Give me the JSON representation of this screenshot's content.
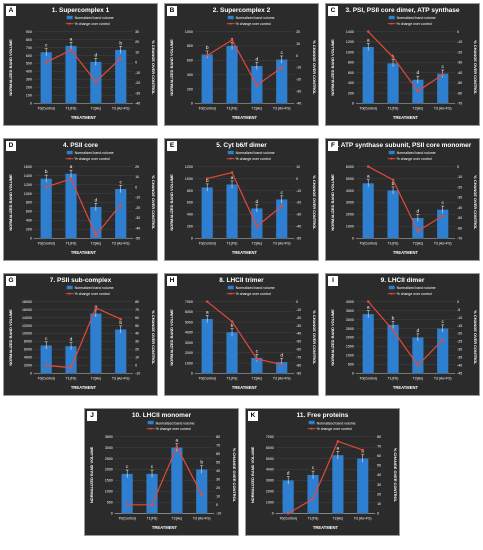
{
  "figure": {
    "categories": [
      "T0(Control)",
      "T1(FS)",
      "T2(As)",
      "T3 (As+FS)"
    ],
    "xlabel": "TREATMENT",
    "ylabel_left": "NORMALIZED BAND VOLUME",
    "ylabel_right": "% CHANGE OVER CONTROL",
    "legend": {
      "bar": "Normalized band volume",
      "line": "% change over control"
    },
    "colors": {
      "bar": "#2f7fd0",
      "line": "#e24a3b",
      "background": "#2b2b2b",
      "text": "#ffffff"
    }
  },
  "chart_data": [
    {
      "letter": "A",
      "title": "1. Supercomplex 1",
      "type": "bar",
      "categories": [
        "T0(Control)",
        "T1(FS)",
        "T2(As)",
        "T3 (As+FS)"
      ],
      "values": [
        640,
        720,
        520,
        670
      ],
      "line_values": [
        0,
        12,
        -19,
        4
      ],
      "sig_letters": [
        "c",
        "a",
        "d",
        "b"
      ],
      "ylim": [
        0,
        900
      ],
      "yticks": [
        "0",
        "100",
        "200",
        "300",
        "400",
        "500",
        "600",
        "700",
        "800",
        "900"
      ],
      "y2lim": [
        -40,
        30
      ],
      "y2ticks": [
        "-40",
        "-30",
        "-20",
        "-10",
        "0",
        "10",
        "20",
        "30"
      ],
      "xlabel": "TREATMENT",
      "ylabel": "NORMALIZED BAND VOLUME",
      "y2label": "% CHANGE OVER CONTROL",
      "legend": [
        "Normalized band volume",
        "% change over control"
      ]
    },
    {
      "letter": "B",
      "title": "2. Supercomplex 2",
      "type": "bar",
      "categories": [
        "T0(Control)",
        "T1(FS)",
        "T2(As)",
        "T3 (As+FS)"
      ],
      "values": [
        680,
        800,
        520,
        610
      ],
      "line_values": [
        0,
        13,
        -25,
        -10
      ],
      "sig_letters": [
        "b",
        "a",
        "d",
        "c"
      ],
      "ylim": [
        0,
        1000
      ],
      "yticks": [
        "0",
        "200",
        "400",
        "600",
        "800",
        "1000"
      ],
      "y2lim": [
        -40,
        20
      ],
      "y2ticks": [
        "-40",
        "-30",
        "-20",
        "-10",
        "0",
        "10",
        "20"
      ],
      "xlabel": "TREATMENT",
      "ylabel": "NORMALIZED BAND VOLUME",
      "y2label": "% CHANGE OVER CONTROL",
      "legend": [
        "Normalized band volume",
        "% change over control"
      ]
    },
    {
      "letter": "C",
      "title": "3. PSI, PSII core dimer, ATP synthase",
      "type": "bar",
      "categories": [
        "T0(Control)",
        "T1(FS)",
        "T2(As)",
        "T3 (As+FS)"
      ],
      "values": [
        1100,
        780,
        460,
        580
      ],
      "line_values": [
        0,
        -25,
        -58,
        -42
      ],
      "sig_letters": [
        "a",
        "b",
        "d",
        "c"
      ],
      "ylim": [
        0,
        1400
      ],
      "yticks": [
        "0",
        "200",
        "400",
        "600",
        "800",
        "1000",
        "1200",
        "1400"
      ],
      "y2lim": [
        -70,
        0
      ],
      "y2ticks": [
        "-70",
        "-60",
        "-50",
        "-40",
        "-30",
        "-20",
        "-10",
        "0"
      ],
      "xlabel": "TREATMENT",
      "ylabel": "NORMALIZED BAND VOLUME",
      "y2label": "% CHANGE OVER CONTROL",
      "legend": [
        "Normalized band volume",
        "% change over control"
      ]
    },
    {
      "letter": "D",
      "title": "4. PSII core",
      "type": "bar",
      "categories": [
        "T0(Control)",
        "T1(FS)",
        "T2(As)",
        "T3 (As+FS)"
      ],
      "values": [
        1330,
        1440,
        700,
        1100
      ],
      "line_values": [
        0,
        8,
        -47,
        -17
      ],
      "sig_letters": [
        "b",
        "a",
        "d",
        "c"
      ],
      "ylim": [
        0,
        1600
      ],
      "yticks": [
        "0",
        "200",
        "400",
        "600",
        "800",
        "1000",
        "1200",
        "1400",
        "1600"
      ],
      "y2lim": [
        -50,
        20
      ],
      "y2ticks": [
        "-50",
        "-40",
        "-30",
        "-20",
        "-10",
        "0",
        "10",
        "20"
      ],
      "xlabel": "TREATMENT",
      "ylabel": "NORMALIZED BAND VOLUME",
      "y2label": "% CHANGE OVER CONTROL",
      "legend": [
        "Normalized band volume",
        "% change over control"
      ]
    },
    {
      "letter": "E",
      "title": "5. Cyt b6/f dimer",
      "type": "bar",
      "categories": [
        "T0(Control)",
        "T1(FS)",
        "T2(As)",
        "T3 (As+FS)"
      ],
      "values": [
        850,
        900,
        500,
        650
      ],
      "line_values": [
        0,
        5,
        -40,
        -23
      ],
      "sig_letters": [
        "b",
        "a",
        "d",
        "c"
      ],
      "ylim": [
        0,
        1200
      ],
      "yticks": [
        "0",
        "200",
        "400",
        "600",
        "800",
        "1000",
        "1200"
      ],
      "y2lim": [
        -50,
        10
      ],
      "y2ticks": [
        "-50",
        "-40",
        "-30",
        "-20",
        "-10",
        "0",
        "10"
      ],
      "xlabel": "TREATMENT",
      "ylabel": "NORMALIZED BAND VOLUME",
      "y2label": "% CHANGE OVER CONTROL",
      "legend": [
        "Normalized band volume",
        "% change over control"
      ]
    },
    {
      "letter": "F",
      "title": "6. ATP synthase subunit, PSII core monomer",
      "type": "bar",
      "categories": [
        "T0(Control)",
        "T1(FS)",
        "T2(As)",
        "T3 (As+FS)"
      ],
      "values": [
        4600,
        4000,
        1700,
        2400
      ],
      "line_values": [
        0,
        -13,
        -63,
        -48
      ],
      "sig_letters": [
        "a",
        "b",
        "d",
        "c"
      ],
      "ylim": [
        0,
        6000
      ],
      "yticks": [
        "0",
        "1000",
        "2000",
        "3000",
        "4000",
        "5000",
        "6000"
      ],
      "y2lim": [
        -70,
        0
      ],
      "y2ticks": [
        "-70",
        "-60",
        "-50",
        "-40",
        "-30",
        "-20",
        "-10",
        "0"
      ],
      "xlabel": "TREATMENT",
      "ylabel": "NORMALIZED BAND VOLUME",
      "y2label": "% CHANGE OVER CONTROL",
      "legend": [
        "Normalized band volume",
        "% change over control"
      ]
    },
    {
      "letter": "G",
      "title": "7. PSII sub-complex",
      "type": "bar",
      "categories": [
        "T0(Control)",
        "T1(FS)",
        "T2(As)",
        "T3 (As+FS)"
      ],
      "values": [
        7000,
        6800,
        15000,
        11000
      ],
      "line_values": [
        0,
        -3,
        72,
        58
      ],
      "sig_letters": [
        "c",
        "d",
        "a",
        "b"
      ],
      "ylim": [
        0,
        18000
      ],
      "yticks": [
        "0",
        "2000",
        "4000",
        "6000",
        "8000",
        "10000",
        "12000",
        "14000",
        "16000",
        "18000"
      ],
      "y2lim": [
        -10,
        80
      ],
      "y2ticks": [
        "-10",
        "0",
        "10",
        "20",
        "30",
        "40",
        "50",
        "60",
        "70",
        "80"
      ],
      "xlabel": "TREATMENT",
      "ylabel": "NORMALIZED BAND VOLUME",
      "y2label": "% CHANGE OVER CONTROL",
      "legend": [
        "Normalized band volume",
        "% change over control"
      ]
    },
    {
      "letter": "H",
      "title": "8. LHCII trimer",
      "type": "bar",
      "categories": [
        "T0(Control)",
        "T1(FS)",
        "T2(As)",
        "T3 (As+FS)"
      ],
      "values": [
        5300,
        4000,
        1500,
        1100
      ],
      "line_values": [
        0,
        -25,
        -72,
        -79
      ],
      "sig_letters": [
        "a",
        "b",
        "c",
        "d"
      ],
      "ylim": [
        0,
        7000
      ],
      "yticks": [
        "0",
        "1000",
        "2000",
        "3000",
        "4000",
        "5000",
        "6000",
        "7000"
      ],
      "y2lim": [
        -90,
        0
      ],
      "y2ticks": [
        "-90",
        "-80",
        "-70",
        "-60",
        "-50",
        "-40",
        "-30",
        "-20",
        "-10",
        "0"
      ],
      "xlabel": "TREATMENT",
      "ylabel": "NORMALIZED BAND VOLUME",
      "y2label": "% CHANGE OVER CONTROL",
      "legend": [
        "Normalized band volume",
        "% change over control"
      ]
    },
    {
      "letter": "I",
      "title": "9. LHCII dimer",
      "type": "bar",
      "categories": [
        "T0(Control)",
        "T1(FS)",
        "T2(As)",
        "T3 (As+FS)"
      ],
      "values": [
        3300,
        2700,
        2000,
        2500
      ],
      "line_values": [
        0,
        -18,
        -40,
        -24
      ],
      "sig_letters": [
        "a",
        "b",
        "d",
        "c"
      ],
      "ylim": [
        0,
        4000
      ],
      "yticks": [
        "0",
        "500",
        "1000",
        "1500",
        "2000",
        "2500",
        "3000",
        "3500",
        "4000"
      ],
      "y2lim": [
        -45,
        0
      ],
      "y2ticks": [
        "-45",
        "-40",
        "-35",
        "-30",
        "-25",
        "-20",
        "-15",
        "-10",
        "-5",
        "0"
      ],
      "xlabel": "TREATMENT",
      "ylabel": "NORMALIZED BAND VOLUME",
      "y2label": "% CHANGE OVER CONTROL",
      "legend": [
        "Normalized band volume",
        "% change over control"
      ]
    },
    {
      "letter": "J",
      "title": "10. LHCII monomer",
      "type": "bar",
      "categories": [
        "T0(Control)",
        "T1(FS)",
        "T2(As)",
        "T3 (As+FS)"
      ],
      "values": [
        1800,
        1800,
        3000,
        2000
      ],
      "line_values": [
        0,
        0,
        68,
        12
      ],
      "sig_letters": [
        "c",
        "c",
        "a",
        "b"
      ],
      "ylim": [
        0,
        3500
      ],
      "yticks": [
        "0",
        "500",
        "1000",
        "1500",
        "2000",
        "2500",
        "3000",
        "3500"
      ],
      "y2lim": [
        -10,
        80
      ],
      "y2ticks": [
        "-10",
        "0",
        "10",
        "20",
        "30",
        "40",
        "50",
        "60",
        "70",
        "80"
      ],
      "xlabel": "TREATMENT",
      "ylabel": "NORMALIZED BAND VOLUME",
      "y2label": "% CHANGE OVER CONTROL",
      "legend": [
        "Normalized band volume",
        "% change over control"
      ]
    },
    {
      "letter": "K",
      "title": "11. Free proteins",
      "type": "bar",
      "categories": [
        "T0(Control)",
        "T1(FS)",
        "T2(As)",
        "T3 (As+FS)"
      ],
      "values": [
        3000,
        3500,
        5300,
        5000
      ],
      "line_values": [
        0,
        15,
        75,
        66
      ],
      "sig_letters": [
        "d",
        "c",
        "a",
        "b"
      ],
      "ylim": [
        0,
        7000
      ],
      "yticks": [
        "0",
        "1000",
        "2000",
        "3000",
        "4000",
        "5000",
        "6000",
        "7000"
      ],
      "y2lim": [
        0,
        80
      ],
      "y2ticks": [
        "0",
        "10",
        "20",
        "30",
        "40",
        "50",
        "60",
        "70",
        "80"
      ],
      "xlabel": "TREATMENT",
      "ylabel": "NORMALIZED BAND VOLUME",
      "y2label": "% CHANGE OVER CONTROL",
      "legend": [
        "Normalized band volume",
        "% change over control"
      ]
    }
  ]
}
